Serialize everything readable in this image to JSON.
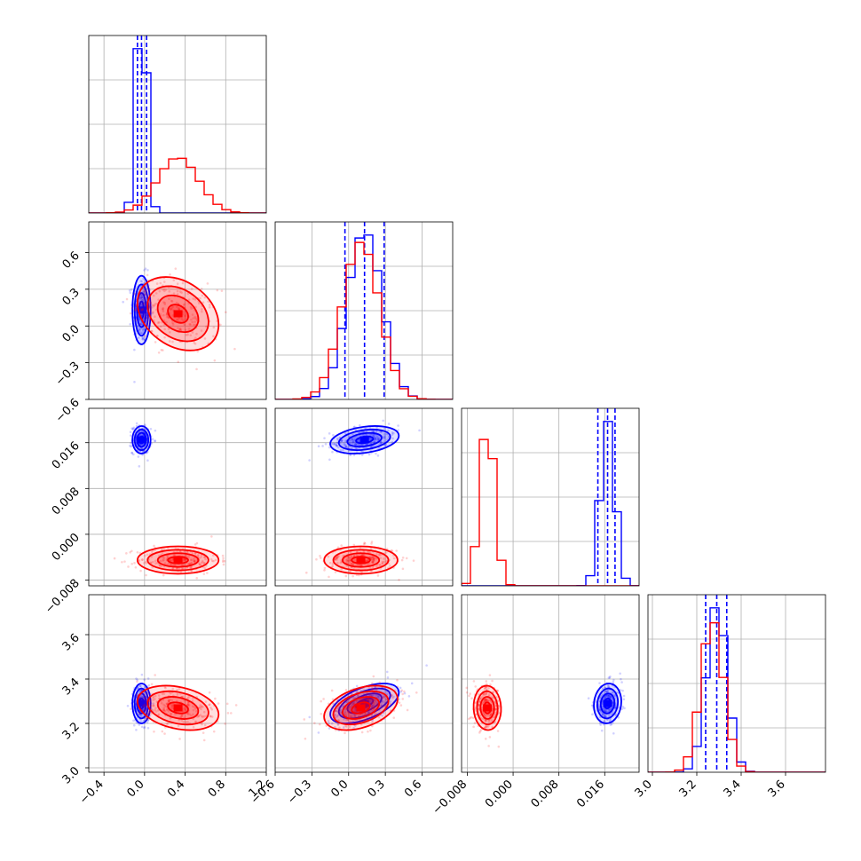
{
  "chart_data": {
    "type": "corner",
    "colors": {
      "series_a": "#0000ff",
      "series_b": "#ff0000",
      "grid": "#b0b0b0",
      "axes": "#000000"
    },
    "grid": true,
    "parameters": [
      {
        "range": [
          -0.55,
          1.2
        ],
        "ticks": [
          -0.4,
          0.0,
          0.4,
          0.8,
          1.2
        ],
        "tick_labels": [
          "−0.4",
          "0.0",
          "0.4",
          "0.8",
          "1.2"
        ]
      },
      {
        "range": [
          -0.6,
          0.85
        ],
        "ticks": [
          -0.6,
          -0.3,
          0.0,
          0.3,
          0.6
        ],
        "tick_labels": [
          "−0.6",
          "−0.3",
          "0.0",
          "0.3",
          "0.6"
        ]
      },
      {
        "range": [
          -0.009,
          0.022
        ],
        "ticks": [
          -0.008,
          0.0,
          0.008,
          0.016
        ],
        "tick_labels": [
          "−0.008",
          "0.000",
          "0.008",
          "0.016"
        ]
      },
      {
        "range": [
          2.98,
          3.78
        ],
        "ticks": [
          3.0,
          3.2,
          3.4,
          3.6
        ],
        "tick_labels": [
          "3.0",
          "3.2",
          "3.4",
          "3.6"
        ]
      }
    ],
    "series": [
      {
        "color": "#0000ff",
        "mean": [
          -0.03,
          0.13,
          0.0165,
          3.29
        ],
        "sd": [
          0.045,
          0.14,
          0.0012,
          0.045
        ],
        "corr": {
          "0-1": 0.0,
          "0-2": 0.0,
          "0-3": 0.0,
          "1-2": 0.3,
          "1-3": 0.55,
          "2-3": 0.1
        },
        "quantiles": [
          [
            -0.07,
            -0.03,
            0.02
          ],
          [
            -0.03,
            0.13,
            0.29
          ],
          [
            0.0148,
            0.0165,
            0.0178
          ],
          [
            3.24,
            3.29,
            3.335
          ]
        ]
      },
      {
        "color": "#ff0000",
        "mean": [
          0.33,
          0.1,
          -0.0045,
          3.27
        ],
        "sd": [
          0.2,
          0.15,
          0.0012,
          0.05
        ],
        "corr": {
          "0-1": -0.3,
          "0-2": 0.0,
          "0-3": -0.3,
          "1-2": 0.0,
          "1-3": 0.4,
          "2-3": -0.05
        },
        "quantiles": null
      }
    ]
  }
}
